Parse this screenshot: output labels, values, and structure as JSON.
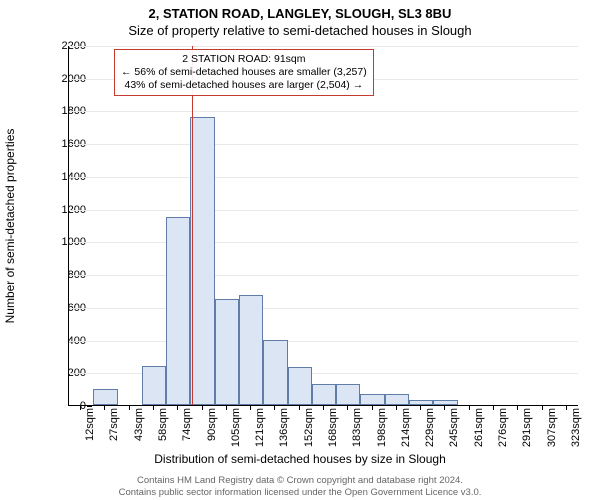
{
  "titles": {
    "line1": "2, STATION ROAD, LANGLEY, SLOUGH, SL3 8BU",
    "line2": "Size of property relative to semi-detached houses in Slough"
  },
  "axes": {
    "ylabel": "Number of semi-detached properties",
    "xlabel": "Distribution of semi-detached houses by size in Slough",
    "ylim": [
      0,
      2200
    ],
    "ytick_step": 200,
    "grid_color": "#e9e9e9",
    "axis_color": "#000000",
    "label_fontsize": 12,
    "tick_fontsize": 11
  },
  "histogram": {
    "type": "histogram",
    "categories": [
      "12sqm",
      "27sqm",
      "43sqm",
      "58sqm",
      "74sqm",
      "90sqm",
      "105sqm",
      "121sqm",
      "136sqm",
      "152sqm",
      "168sqm",
      "183sqm",
      "198sqm",
      "214sqm",
      "229sqm",
      "245sqm",
      "261sqm",
      "276sqm",
      "291sqm",
      "307sqm",
      "323sqm"
    ],
    "values": [
      0,
      100,
      0,
      240,
      1150,
      1760,
      650,
      670,
      400,
      230,
      130,
      130,
      70,
      70,
      30,
      30,
      0,
      0,
      0,
      0,
      0
    ],
    "bar_fill": "#dbe5f3",
    "bar_stroke": "#5f7da7",
    "bar_width_ratio": 1.0,
    "background_color": "#ffffff"
  },
  "marker": {
    "value_index": 5.07,
    "line_color": "#c43a31",
    "line_width": 1
  },
  "annotation": {
    "border_color": "#c43a31",
    "lines": {
      "a": "2 STATION ROAD: 91sqm",
      "b": "← 56% of semi-detached houses are smaller (3,257)",
      "c": "43% of semi-detached houses are larger (2,504) →"
    }
  },
  "footer": {
    "line1": "Contains HM Land Registry data © Crown copyright and database right 2024.",
    "line2": "Contains public sector information licensed under the Open Government Licence v3.0."
  }
}
